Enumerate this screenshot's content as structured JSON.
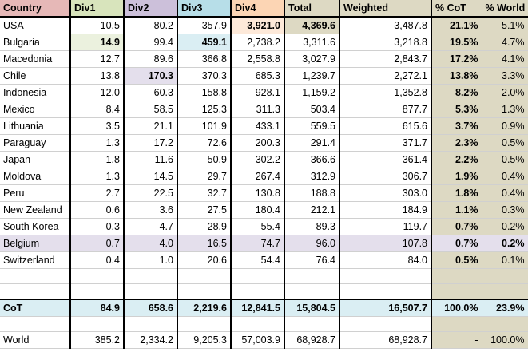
{
  "columns": [
    "Country",
    "Div1",
    "Div2",
    "Div3",
    "Div4",
    "Total",
    "Weighted",
    "% CoT",
    "% World"
  ],
  "rows": [
    [
      "USA",
      "10.5",
      "80.2",
      "357.9",
      "3,921.0",
      "4,369.6",
      "3,487.8",
      "21.1%",
      "5.1%"
    ],
    [
      "Bulgaria",
      "14.9",
      "99.4",
      "459.1",
      "2,738.2",
      "3,311.6",
      "3,218.8",
      "19.5%",
      "4.7%"
    ],
    [
      "Macedonia",
      "12.7",
      "89.6",
      "366.8",
      "2,558.8",
      "3,027.9",
      "2,843.7",
      "17.2%",
      "4.1%"
    ],
    [
      "Chile",
      "13.8",
      "170.3",
      "370.3",
      "685.3",
      "1,239.7",
      "2,272.1",
      "13.8%",
      "3.3%"
    ],
    [
      "Indonesia",
      "12.0",
      "60.3",
      "158.8",
      "928.1",
      "1,159.2",
      "1,352.8",
      "8.2%",
      "2.0%"
    ],
    [
      "Mexico",
      "8.4",
      "58.5",
      "125.3",
      "311.3",
      "503.4",
      "877.7",
      "5.3%",
      "1.3%"
    ],
    [
      "Lithuania",
      "3.5",
      "21.1",
      "101.9",
      "433.1",
      "559.5",
      "615.6",
      "3.7%",
      "0.9%"
    ],
    [
      "Paraguay",
      "1.3",
      "17.2",
      "72.6",
      "200.3",
      "291.4",
      "371.7",
      "2.3%",
      "0.5%"
    ],
    [
      "Japan",
      "1.8",
      "11.6",
      "50.9",
      "302.2",
      "366.6",
      "361.4",
      "2.2%",
      "0.5%"
    ],
    [
      "Moldova",
      "1.3",
      "14.5",
      "29.7",
      "267.4",
      "312.9",
      "306.7",
      "1.9%",
      "0.4%"
    ],
    [
      "Peru",
      "2.7",
      "22.5",
      "32.7",
      "130.8",
      "188.8",
      "303.0",
      "1.8%",
      "0.4%"
    ],
    [
      "New Zealand",
      "0.6",
      "3.6",
      "27.5",
      "180.4",
      "212.1",
      "184.9",
      "1.1%",
      "0.3%"
    ],
    [
      "South Korea",
      "0.3",
      "4.7",
      "28.9",
      "55.4",
      "89.3",
      "119.7",
      "0.7%",
      "0.2%"
    ],
    [
      "Belgium",
      "0.7",
      "4.0",
      "16.5",
      "74.7",
      "96.0",
      "107.8",
      "0.7%",
      "0.2%"
    ],
    [
      "Switzerland",
      "0.4",
      "1.0",
      "20.6",
      "54.4",
      "76.4",
      "84.0",
      "0.5%",
      "0.1%"
    ]
  ],
  "cot_row": [
    "CoT",
    "84.9",
    "658.6",
    "2,219.6",
    "12,841.5",
    "15,804.5",
    "16,507.7",
    "100.0%",
    "23.9%"
  ],
  "world_row": [
    "World",
    "385.2",
    "2,334.2",
    "9,205.3",
    "57,003.9",
    "68,928.7",
    "68,928.7",
    "-",
    "100.0%"
  ],
  "colors": {
    "header": [
      "#e6b8b7",
      "#d8e4bc",
      "#ccc0da",
      "#b7dee8",
      "#fcd5b4",
      "#ddd9c3",
      "#ddd9c3",
      "#ddd9c3",
      "#ddd9c3"
    ],
    "col_bg": "#ddd9c3",
    "cot_bg": "#daeef3",
    "belgium_bg": "#e4dfec",
    "hl_green": "#ebf1de",
    "hl_blue": "#daeef3",
    "hl_purple": "#e4dfec",
    "hl_orange": "#fde9d9",
    "hl_tan": "#ddd9c3"
  }
}
